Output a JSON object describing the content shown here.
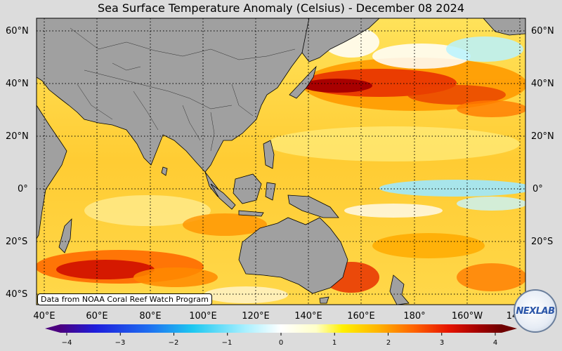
{
  "title": "Sea Surface Temperature Anomaly (Celsius) - December 08 2024",
  "credit": "Data from NOAA Coral Reef Watch Program",
  "logo_text": "NEXLAB",
  "lat_labels": [
    "60°N",
    "40°N",
    "20°N",
    "0°",
    "20°S",
    "40°S"
  ],
  "lon_labels": [
    "40°E",
    "60°E",
    "80°E",
    "100°E",
    "120°E",
    "140°E",
    "160°E",
    "180°",
    "160°W",
    "14"
  ],
  "colorbar": {
    "ticks": [
      "−4",
      "−3",
      "−2",
      "−1",
      "0",
      "1",
      "2",
      "3",
      "4"
    ],
    "range": [
      -4,
      4
    ],
    "colors": [
      "#4b007f",
      "#1e1edc",
      "#1e6ef0",
      "#1ec8f0",
      "#aaf0ff",
      "#ffffff",
      "#ffffc8",
      "#fff000",
      "#ffb400",
      "#ff6400",
      "#e61400",
      "#a00000",
      "#6e0000"
    ]
  },
  "colors": {
    "land": "#a0a0a0",
    "background": "#dcdcdc"
  }
}
